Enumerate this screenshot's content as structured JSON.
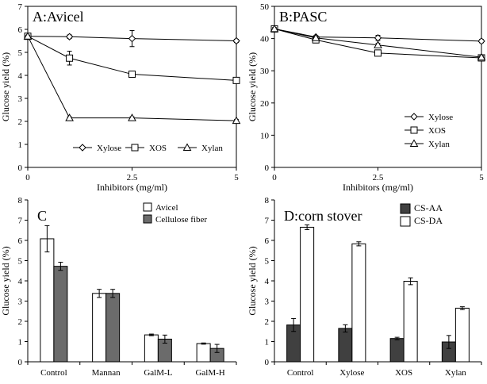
{
  "chart_data": [
    {
      "id": "A",
      "type": "line",
      "title": "A:Avicel",
      "xlabel": "Inhibitors (mg/ml)",
      "ylabel": "Glucose yield (%)",
      "xlim": [
        0,
        5
      ],
      "ylim": [
        0,
        7
      ],
      "xticks": [
        0,
        2.5,
        5
      ],
      "xtick_labels": [
        "0",
        "2.5",
        "5"
      ],
      "yticks": [
        0,
        1,
        2,
        3,
        4,
        5,
        6,
        7
      ],
      "ytick_labels": [
        "0",
        "1",
        "2",
        "3",
        "4",
        "5",
        "6",
        "7"
      ],
      "legend_position": "bottom",
      "series": [
        {
          "name": "Xylose",
          "marker": "diamond",
          "x": [
            0,
            1,
            2.5,
            5
          ],
          "y": [
            5.7,
            5.68,
            5.6,
            5.5
          ],
          "err": [
            0.05,
            0.08,
            0.35,
            0.07
          ]
        },
        {
          "name": "XOS",
          "marker": "square",
          "x": [
            0,
            1,
            2.5,
            5
          ],
          "y": [
            5.7,
            4.75,
            4.05,
            3.78
          ],
          "err": [
            0.05,
            0.3,
            0.1,
            0.07
          ]
        },
        {
          "name": "Xylan",
          "marker": "triangle",
          "x": [
            0,
            1,
            2.5,
            5
          ],
          "y": [
            5.7,
            2.15,
            2.15,
            2.03
          ],
          "err": [
            0.05,
            0.05,
            0.05,
            0.05
          ]
        }
      ]
    },
    {
      "id": "B",
      "type": "line",
      "title": "B:PASC",
      "xlabel": "Inhibitors (mg/ml)",
      "ylabel": "Glucose yield (%)",
      "xlim": [
        0,
        5
      ],
      "ylim": [
        0,
        50
      ],
      "xticks": [
        0,
        2.5,
        5
      ],
      "xtick_labels": [
        "0",
        "2.5",
        "5"
      ],
      "yticks": [
        0,
        10,
        20,
        30,
        40,
        50
      ],
      "ytick_labels": [
        "0",
        "10",
        "20",
        "30",
        "40",
        "50"
      ],
      "legend_position": "right",
      "series": [
        {
          "name": "Xylose",
          "marker": "diamond",
          "x": [
            0,
            1,
            2.5,
            5
          ],
          "y": [
            43,
            40.5,
            40.2,
            39.2
          ],
          "err": [
            0.4,
            0.4,
            0.8,
            0.5
          ]
        },
        {
          "name": "XOS",
          "marker": "square",
          "x": [
            0,
            1,
            2.5,
            5
          ],
          "y": [
            43,
            39.6,
            35.5,
            34
          ],
          "err": [
            0.4,
            0.4,
            0.5,
            0.4
          ]
        },
        {
          "name": "Xylan",
          "marker": "triangle",
          "x": [
            0,
            1,
            2.5,
            5
          ],
          "y": [
            43,
            40.2,
            38,
            34.2
          ],
          "err": [
            0.4,
            0.4,
            0.5,
            0.4
          ]
        }
      ]
    },
    {
      "id": "C",
      "type": "bar",
      "title": "C",
      "xlabel": "",
      "ylabel": "Glucose yield (%)",
      "ylim": [
        0,
        8
      ],
      "yticks": [
        0,
        1,
        2,
        3,
        4,
        5,
        6,
        7,
        8
      ],
      "ytick_labels": [
        "0",
        "1",
        "2",
        "3",
        "4",
        "5",
        "6",
        "7",
        "8"
      ],
      "categories": [
        "Control",
        "Mannan",
        "GalM-L",
        "GalM-H"
      ],
      "legend_position": "top-right",
      "series": [
        {
          "name": "Avicel",
          "color": "#ffffff",
          "values": [
            6.08,
            3.38,
            1.33,
            0.9
          ],
          "err": [
            0.65,
            0.2,
            0.04,
            0.03
          ]
        },
        {
          "name": "Cellulose fiber",
          "color": "#6b6b6b",
          "values": [
            4.72,
            3.38,
            1.12,
            0.66
          ],
          "err": [
            0.2,
            0.2,
            0.2,
            0.2
          ]
        }
      ]
    },
    {
      "id": "D",
      "type": "bar",
      "title": "D:corn stover",
      "xlabel": "",
      "ylabel": "Glucose yield (%)",
      "ylim": [
        0,
        8
      ],
      "yticks": [
        0,
        1,
        2,
        3,
        4,
        5,
        6,
        7,
        8
      ],
      "ytick_labels": [
        "0",
        "1",
        "2",
        "3",
        "4",
        "5",
        "6",
        "7",
        "8"
      ],
      "categories": [
        "Control",
        "Xylose",
        "XOS",
        "Xylan"
      ],
      "legend_position": "top-right",
      "series": [
        {
          "name": "CS-AA",
          "color": "#404040",
          "values": [
            1.82,
            1.65,
            1.15,
            0.98
          ],
          "err": [
            0.32,
            0.18,
            0.06,
            0.32
          ]
        },
        {
          "name": "CS-DA",
          "color": "#ffffff",
          "values": [
            6.65,
            5.83,
            3.98,
            2.65
          ],
          "err": [
            0.12,
            0.1,
            0.17,
            0.07
          ]
        }
      ]
    }
  ]
}
